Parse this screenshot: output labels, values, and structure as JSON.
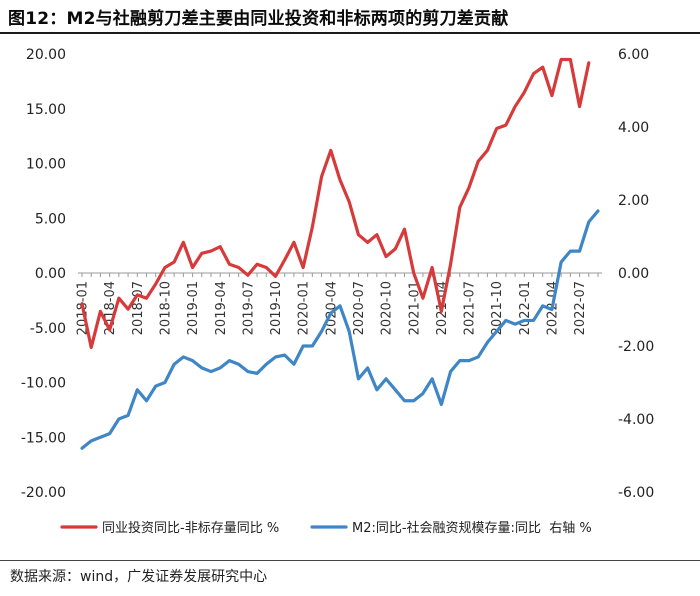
{
  "title": "图12：M2与社融剪刀差主要由同业投资和非标两项的剪刀差贡献",
  "source": "数据来源：wind，广发证券发展研究中心",
  "chart_data": {
    "type": "line",
    "x": [
      "2018-01",
      "2018-02",
      "2018-03",
      "2018-04",
      "2018-05",
      "2018-06",
      "2018-07",
      "2018-08",
      "2018-09",
      "2018-10",
      "2018-11",
      "2018-12",
      "2019-01",
      "2019-02",
      "2019-03",
      "2019-04",
      "2019-05",
      "2019-06",
      "2019-07",
      "2019-08",
      "2019-09",
      "2019-10",
      "2019-11",
      "2019-12",
      "2020-01",
      "2020-02",
      "2020-03",
      "2020-04",
      "2020-05",
      "2020-06",
      "2020-07",
      "2020-08",
      "2020-09",
      "2020-10",
      "2020-11",
      "2020-12",
      "2021-01",
      "2021-02",
      "2021-03",
      "2021-04",
      "2021-05",
      "2021-06",
      "2021-07",
      "2021-08",
      "2021-09",
      "2021-10",
      "2021-11",
      "2021-12",
      "2022-01",
      "2022-02",
      "2022-03",
      "2022-04",
      "2022-05",
      "2022-06",
      "2022-07",
      "2022-08",
      "2022-09"
    ],
    "x_tick_labels": [
      "2018-01",
      "2018-04",
      "2018-07",
      "2018-10",
      "2019-01",
      "2019-04",
      "2019-07",
      "2019-10",
      "2020-01",
      "2020-04",
      "2020-07",
      "2020-10",
      "2021-01",
      "2021-04",
      "2021-07",
      "2021-10",
      "2022-01",
      "2022-04",
      "2022-07"
    ],
    "y_left": {
      "min": -20,
      "max": 20,
      "ticks": [
        "20.00",
        "15.00",
        "10.00",
        "5.00",
        "0.00",
        "-5.00",
        "-10.00",
        "-15.00",
        "-20.00"
      ]
    },
    "y_right": {
      "min": -6,
      "max": 6,
      "ticks": [
        "6.00",
        "4.00",
        "2.00",
        "0.00",
        "-2.00",
        "-4.00",
        "-6.00"
      ]
    },
    "series": [
      {
        "name": "同业投资同比-非标存量同比 %",
        "axis": "left",
        "color": "#d63a3a",
        "values": [
          -2.8,
          -6.8,
          -3.5,
          -5.2,
          -2.3,
          -3.3,
          -2.0,
          -2.3,
          -1.0,
          0.5,
          1.0,
          2.8,
          0.5,
          1.8,
          2.0,
          2.4,
          0.8,
          0.5,
          -0.2,
          0.8,
          0.5,
          -0.3,
          1.2,
          2.8,
          0.5,
          4.2,
          8.8,
          11.2,
          8.5,
          6.5,
          3.5,
          2.8,
          3.5,
          1.5,
          2.2,
          4.0,
          0.0,
          -2.3,
          0.5,
          -3.5,
          0.8,
          6.0,
          7.8,
          10.2,
          11.2,
          13.2,
          13.5,
          15.2,
          16.5,
          18.2,
          18.8,
          16.2,
          19.5,
          19.5,
          15.2,
          19.2,
          null
        ]
      },
      {
        "name": "M2:同比-社会融资规模存量:同比  右轴 %",
        "axis": "right",
        "color": "#3f86c6",
        "values": [
          -4.8,
          -4.6,
          -4.5,
          -4.4,
          -4.0,
          -3.9,
          -3.2,
          -3.5,
          -3.1,
          -3.0,
          -2.5,
          -2.3,
          -2.4,
          -2.6,
          -2.7,
          -2.6,
          -2.4,
          -2.5,
          -2.7,
          -2.75,
          -2.5,
          -2.3,
          -2.25,
          -2.5,
          -2.0,
          -2.0,
          -1.6,
          -1.1,
          -0.9,
          -1.6,
          -2.9,
          -2.6,
          -3.2,
          -2.9,
          -3.2,
          -3.5,
          -3.5,
          -3.3,
          -2.9,
          -3.6,
          -2.7,
          -2.4,
          -2.4,
          -2.3,
          -1.9,
          -1.6,
          -1.3,
          -1.4,
          -1.3,
          -1.3,
          -0.9,
          -1.0,
          0.3,
          0.6,
          0.6,
          1.4,
          1.7
        ]
      }
    ]
  }
}
